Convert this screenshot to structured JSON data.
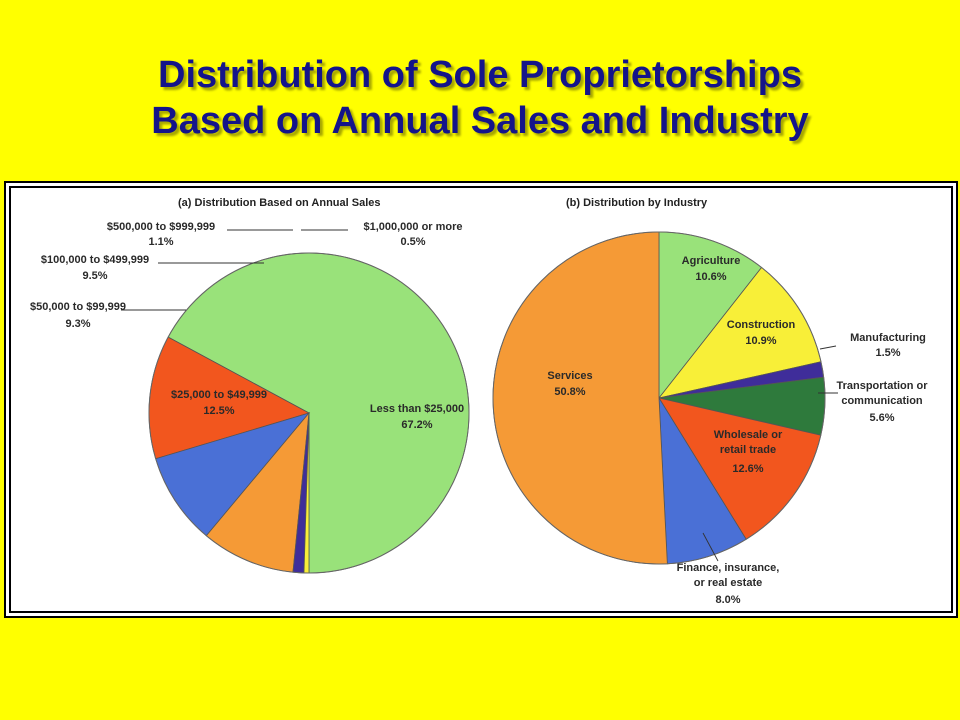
{
  "title": {
    "line1": "Distribution of Sole Proprietorships",
    "line2": "Based on Annual Sales and Industry"
  },
  "colors": {
    "background": "#ffff00",
    "title_text": "#14148a",
    "light_green": "#99e27a",
    "orange": "#f59a36",
    "blue": "#4a70d6",
    "red_orange": "#f2561e",
    "dark_green": "#2e7a3c",
    "purple": "#3f2d9a",
    "yellow": "#f8ef38"
  },
  "chart_data": [
    {
      "type": "pie",
      "title": "(a) Distribution Based on Annual Sales",
      "slices": [
        {
          "label": "Less than $25,000",
          "value": 67.2,
          "value_label": "67.2%",
          "color": "#99e27a"
        },
        {
          "label": "$25,000 to $49,999",
          "value": 12.5,
          "value_label": "12.5%",
          "color": "#f2561e"
        },
        {
          "label": "$50,000 to $99,999",
          "value": 9.3,
          "value_label": "9.3%",
          "color": "#4a70d6"
        },
        {
          "label": "$100,000 to $499,999",
          "value": 9.5,
          "value_label": "9.5%",
          "color": "#f59a36"
        },
        {
          "label": "$500,000 to $999,999",
          "value": 1.1,
          "value_label": "1.1%",
          "color": "#3f2d9a"
        },
        {
          "label": "$1,000,000 or more",
          "value": 0.5,
          "value_label": "0.5%",
          "color": "#f8ef38"
        }
      ]
    },
    {
      "type": "pie",
      "title": "(b) Distribution by Industry",
      "slices": [
        {
          "label": "Agriculture",
          "value": 10.6,
          "value_label": "10.6%",
          "color": "#99e27a"
        },
        {
          "label": "Construction",
          "value": 10.9,
          "value_label": "10.9%",
          "color": "#f8ef38"
        },
        {
          "label": "Manufacturing",
          "value": 1.5,
          "value_label": "1.5%",
          "color": "#3f2d9a"
        },
        {
          "label_lines": [
            "Transportation or",
            "communication"
          ],
          "value": 5.6,
          "value_label": "5.6%",
          "color": "#2e7a3c"
        },
        {
          "label_lines": [
            "Wholesale or",
            "retail trade"
          ],
          "value": 12.6,
          "value_label": "12.6%",
          "color": "#f2561e"
        },
        {
          "label_lines": [
            "Finance, insurance,",
            "or real estate"
          ],
          "value": 8.0,
          "value_label": "8.0%",
          "color": "#4a70d6"
        },
        {
          "label": "Services",
          "value": 50.8,
          "value_label": "50.8%",
          "color": "#f59a36"
        }
      ]
    }
  ]
}
